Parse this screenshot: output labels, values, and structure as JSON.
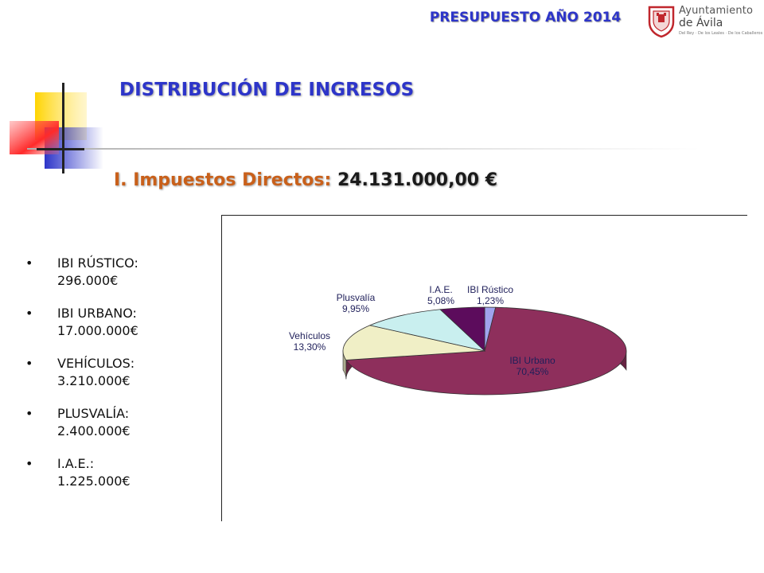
{
  "header": {
    "title": "PRESUPUESTO AÑO 2014",
    "logo": {
      "line1": "Ayuntamiento",
      "line2": "de Ávila",
      "tagline": "Del Rey · De los Leales · De los Caballeros"
    }
  },
  "section_title": "DISTRIBUCIÓN DE INGRESOS",
  "subtitle": {
    "label": "I. Impuestos Directos:",
    "amount": "24.131.000,00 €"
  },
  "items": [
    {
      "name": "IBI RÚSTICO:",
      "value": "296.000€"
    },
    {
      "name": "IBI URBANO:",
      "value": "17.000.000€"
    },
    {
      "name": "VEHÍCULOS:",
      "value": "3.210.000€"
    },
    {
      "name": "PLUSVALÍA:",
      "value": "2.400.000€"
    },
    {
      "name": "I.A.E.:",
      "value": "1.225.000€"
    }
  ],
  "colors": {
    "title_blue": "#2d35c9",
    "subtitle_orange": "#c9601a"
  },
  "chart_data": {
    "type": "pie",
    "style": "3d",
    "title": "",
    "slices": [
      {
        "label": "IBI Rústico",
        "value": 1.23,
        "value_label": "1,23%",
        "color": "#a0a4ee"
      },
      {
        "label": "IBI Urbano",
        "value": 70.45,
        "value_label": "70,45%",
        "color": "#8e2f5c"
      },
      {
        "label": "Vehículos",
        "value": 13.3,
        "value_label": "13,30%",
        "color": "#f0efc6"
      },
      {
        "label": "Plusvalía",
        "value": 9.95,
        "value_label": "9,95%",
        "color": "#c9efef"
      },
      {
        "label": "I.A.E.",
        "value": 5.08,
        "value_label": "5,08%",
        "color": "#5c0c5c"
      }
    ]
  }
}
